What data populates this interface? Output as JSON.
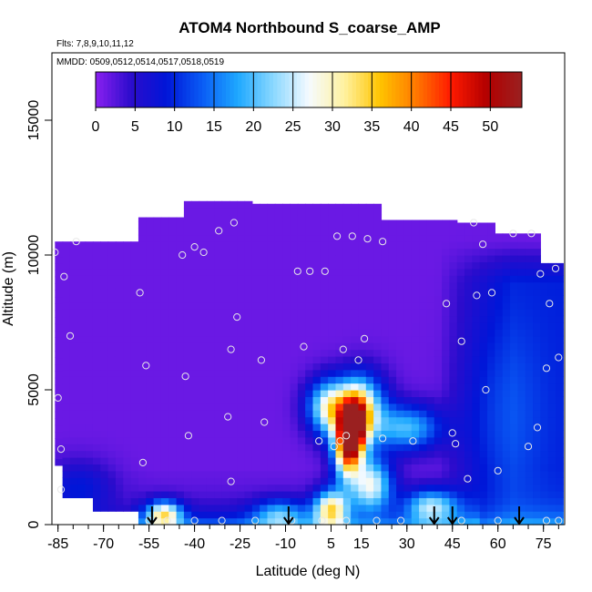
{
  "chart_data": {
    "type": "heatmap",
    "title": "ATOM4 Northbound S_coarse_AMP",
    "flights_label": "Flts: 7,8,9,10,11,12",
    "dates_label": "MMDD: 0509,0512,0514,0517,0518,0519",
    "xlabel": "Latitude (deg N)",
    "ylabel": "Altitude (m)",
    "xlim": [
      -87,
      82
    ],
    "ylim": [
      0,
      17500
    ],
    "x_ticks": [
      -85,
      -70,
      -55,
      -40,
      -25,
      -10,
      5,
      15,
      30,
      45,
      60,
      75
    ],
    "y_ticks": [
      0,
      5000,
      10000,
      15000
    ],
    "colorbar": {
      "min": 0,
      "max": 54,
      "ticks": [
        0,
        5,
        10,
        15,
        20,
        25,
        30,
        35,
        40,
        45,
        50
      ],
      "colors": [
        "#8a20f0",
        "#2b0ccc",
        "#0016d8",
        "#0a5cf5",
        "#1ea8ff",
        "#8ad8ff",
        "#f5faff",
        "#fff2a0",
        "#ffc400",
        "#ff7a00",
        "#ff1a00",
        "#b30000",
        "#9a2020"
      ]
    },
    "profile_arrows_lat": [
      -54,
      -9,
      39,
      45,
      67
    ],
    "samples": [
      {
        "x": -86,
        "y": 10100
      },
      {
        "x": -83,
        "y": 9200
      },
      {
        "x": -79,
        "y": 10500
      },
      {
        "x": -81,
        "y": 7000
      },
      {
        "x": -85,
        "y": 4700
      },
      {
        "x": -84,
        "y": 2800
      },
      {
        "x": -84,
        "y": 1300
      },
      {
        "x": -58,
        "y": 8600
      },
      {
        "x": -56,
        "y": 5900
      },
      {
        "x": -57,
        "y": 2300
      },
      {
        "x": -44,
        "y": 10000
      },
      {
        "x": -40,
        "y": 10300
      },
      {
        "x": -43,
        "y": 5500
      },
      {
        "x": -42,
        "y": 3300
      },
      {
        "x": -37,
        "y": 10100
      },
      {
        "x": -32,
        "y": 10900
      },
      {
        "x": -27,
        "y": 11200
      },
      {
        "x": -26,
        "y": 7700
      },
      {
        "x": -28,
        "y": 6500
      },
      {
        "x": -29,
        "y": 4000
      },
      {
        "x": -28,
        "y": 1600
      },
      {
        "x": -18,
        "y": 6100
      },
      {
        "x": -17,
        "y": 3800
      },
      {
        "x": -6,
        "y": 9400
      },
      {
        "x": -2,
        "y": 9400
      },
      {
        "x": 3,
        "y": 9400
      },
      {
        "x": 7,
        "y": 10700
      },
      {
        "x": 12,
        "y": 10700
      },
      {
        "x": 17,
        "y": 10600
      },
      {
        "x": 22,
        "y": 10500
      },
      {
        "x": -4,
        "y": 6600
      },
      {
        "x": 9,
        "y": 6500
      },
      {
        "x": 14,
        "y": 6100
      },
      {
        "x": 16,
        "y": 6900
      },
      {
        "x": 1,
        "y": 3100
      },
      {
        "x": 6,
        "y": 2900
      },
      {
        "x": 8,
        "y": 3100
      },
      {
        "x": 10,
        "y": 3300
      },
      {
        "x": 22,
        "y": 3200
      },
      {
        "x": 32,
        "y": 3100
      },
      {
        "x": 45,
        "y": 3400
      },
      {
        "x": 46,
        "y": 3000
      },
      {
        "x": 43,
        "y": 8200
      },
      {
        "x": 48,
        "y": 6800
      },
      {
        "x": 52,
        "y": 11200
      },
      {
        "x": 55,
        "y": 10400
      },
      {
        "x": 58,
        "y": 8600
      },
      {
        "x": 53,
        "y": 8500
      },
      {
        "x": 56,
        "y": 5000
      },
      {
        "x": 60,
        "y": 2000
      },
      {
        "x": 50,
        "y": 1700
      },
      {
        "x": 65,
        "y": 10800
      },
      {
        "x": 71,
        "y": 10800
      },
      {
        "x": 74,
        "y": 9300
      },
      {
        "x": 79,
        "y": 9500
      },
      {
        "x": 76,
        "y": 5800
      },
      {
        "x": 73,
        "y": 3600
      },
      {
        "x": 70,
        "y": 2900
      },
      {
        "x": 80,
        "y": 6200
      },
      {
        "x": 77,
        "y": 8200
      },
      {
        "x": -55,
        "y": 150
      },
      {
        "x": -49,
        "y": 150
      },
      {
        "x": -40,
        "y": 150
      },
      {
        "x": -31,
        "y": 150
      },
      {
        "x": -20,
        "y": 150
      },
      {
        "x": -8,
        "y": 150
      },
      {
        "x": 2,
        "y": 150
      },
      {
        "x": 10,
        "y": 150
      },
      {
        "x": 20,
        "y": 150
      },
      {
        "x": 28,
        "y": 150
      },
      {
        "x": 48,
        "y": 150
      },
      {
        "x": 60,
        "y": 150
      },
      {
        "x": 76,
        "y": 150
      },
      {
        "x": 80,
        "y": 150
      }
    ]
  }
}
